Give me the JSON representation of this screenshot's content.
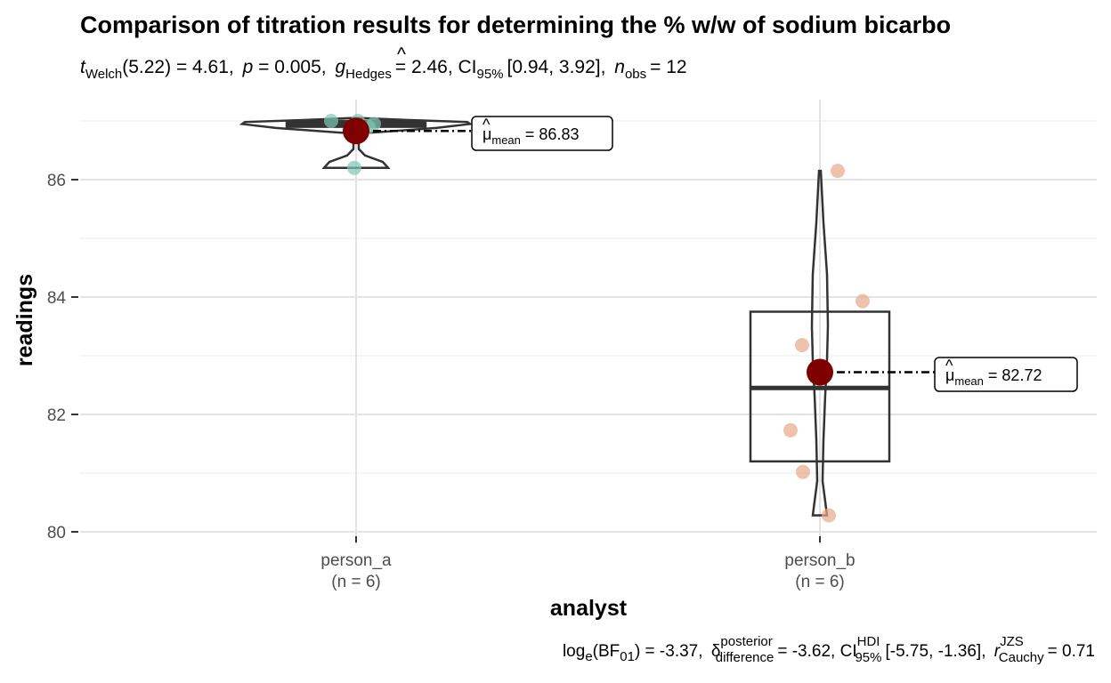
{
  "chart_data": {
    "type": "box",
    "title": "Comparison of titration results for determining the % w/w of sodium bicarbo",
    "subtitle": {
      "t_stat": "t",
      "t_sub": "Welch",
      "t_val": "(5.22) = 4.61,",
      "p_sym": "p",
      "p_val": "= 0.005,",
      "g_sym": "g",
      "g_sub": "Hedges",
      "g_val": "= 2.46, CI",
      "ci_sub": "95%",
      "ci_val": "[0.94, 3.92],",
      "n_sym": "n",
      "n_sub": "obs",
      "n_val": "= 12"
    },
    "xlabel": "analyst",
    "ylabel": "readings",
    "ylim": [
      79.8,
      87.5
    ],
    "yticks": [
      "80",
      "82",
      "84",
      "86"
    ],
    "grid": true,
    "categories": [
      "person_a",
      "person_b"
    ],
    "category_counts": [
      "(n = 6)",
      "(n = 6)"
    ],
    "series": [
      {
        "name": "person_a",
        "color": "#7fc6b3",
        "points": [
          87.0,
          87.0,
          86.95,
          86.85,
          86.9,
          86.2
        ],
        "box": {
          "q1": 86.9,
          "median": 86.95,
          "q3": 87.0,
          "min": 86.9,
          "max": 87.0
        },
        "violin_range": [
          86.2,
          87.05
        ],
        "mean": 86.83,
        "mean_label": "= 86.83"
      },
      {
        "name": "person_b",
        "color": "#e8a888",
        "points": [
          86.15,
          83.93,
          83.18,
          81.73,
          81.02,
          80.28
        ],
        "box": {
          "q1": 81.2,
          "median": 82.45,
          "q3": 83.75,
          "min": 80.28,
          "max": 86.15
        },
        "violin_range": [
          80.28,
          86.15
        ],
        "mean": 82.72,
        "mean_label": "= 82.72"
      }
    ],
    "mean_color": "#7f0000",
    "mean_sym": "μ",
    "mean_sub": "mean",
    "caption": {
      "log": "log",
      "log_sub": "e",
      "bf": "(BF",
      "bf_sub": "01",
      "bf_val": ") = -3.37,",
      "delta": "δ",
      "delta_sup": "posterior",
      "delta_sub": "difference",
      "delta_val": "= -3.62, CI",
      "ci_sup": "HDI",
      "ci_sub": "95%",
      "ci_val": "[-5.75, -1.36],",
      "r": "r",
      "r_sup": "JZS",
      "r_sub": "Cauchy",
      "r_val": "= 0.71"
    }
  }
}
